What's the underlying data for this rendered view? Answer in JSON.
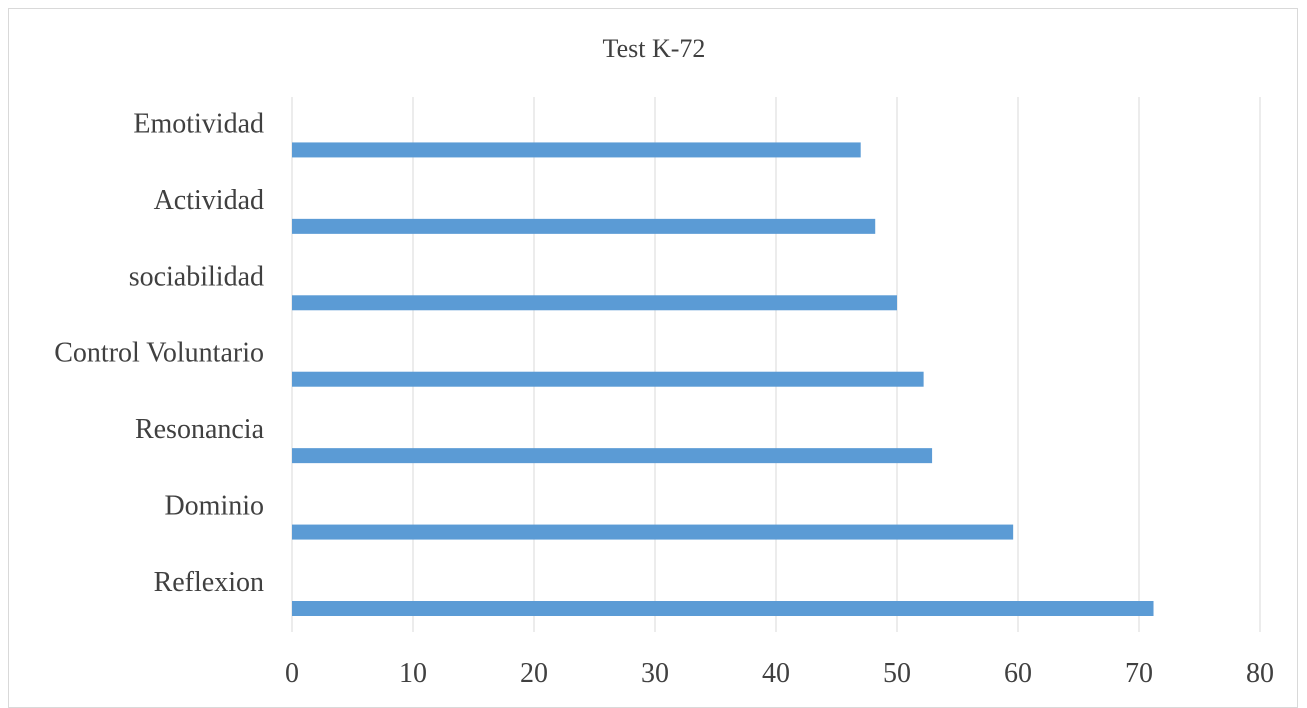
{
  "chart_data": {
    "type": "bar",
    "orientation": "horizontal",
    "title": "Test K-72",
    "xlabel": "",
    "ylabel": "",
    "categories": [
      "Reflexion",
      "Dominio",
      "Resonancia",
      "Control Voluntario",
      "sociabilidad",
      "Actividad",
      "Emotividad"
    ],
    "values": [
      71.2,
      59.6,
      52.9,
      52.2,
      50.0,
      48.2,
      47.0
    ],
    "xlim": [
      0,
      80
    ],
    "x_ticks": [
      "0",
      "10",
      "20",
      "30",
      "40",
      "50",
      "60",
      "70",
      "80"
    ],
    "grid": "vertical",
    "legend": "none",
    "bar_color": "#5b9bd5",
    "grid_color": "#d9d9d9",
    "text_color": "#404040"
  }
}
